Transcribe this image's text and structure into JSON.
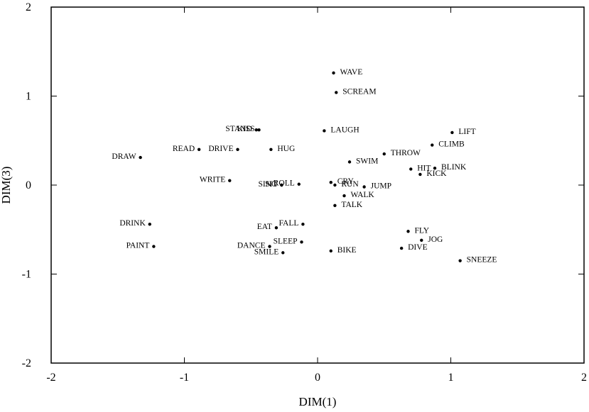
{
  "chart_data": {
    "type": "scatter",
    "title": "",
    "xlabel": "DIM(1)",
    "ylabel": "DIM(3)",
    "xlim": [
      -2,
      2
    ],
    "ylim": [
      -2,
      2
    ],
    "xticks": [
      "-2",
      "-1",
      "0",
      "1",
      "2"
    ],
    "yticks": [
      "-2",
      "-1",
      "0",
      "1",
      "2"
    ],
    "grid": false,
    "points": [
      {
        "label": "WAVE",
        "x": 0.12,
        "y": 1.26
      },
      {
        "label": "SCREAM",
        "x": 0.14,
        "y": 1.04
      },
      {
        "label": "STAND",
        "x": -0.46,
        "y": 0.62
      },
      {
        "label": "KISS",
        "x": -0.44,
        "y": 0.62
      },
      {
        "label": "LAUGH",
        "x": 0.05,
        "y": 0.61
      },
      {
        "label": "LIFT",
        "x": 1.01,
        "y": 0.59
      },
      {
        "label": "CLIMB",
        "x": 0.86,
        "y": 0.45
      },
      {
        "label": "THROW",
        "x": 0.5,
        "y": 0.35
      },
      {
        "label": "SWIM",
        "x": 0.24,
        "y": 0.26
      },
      {
        "label": "BLINK",
        "x": 0.88,
        "y": 0.19
      },
      {
        "label": "HIT",
        "x": 0.7,
        "y": 0.18
      },
      {
        "label": "KICK",
        "x": 0.77,
        "y": 0.12
      },
      {
        "label": "DRAW",
        "x": -1.33,
        "y": 0.31
      },
      {
        "label": "READ",
        "x": -0.89,
        "y": 0.4
      },
      {
        "label": "DRIVE",
        "x": -0.6,
        "y": 0.4
      },
      {
        "label": "HUG",
        "x": -0.35,
        "y": 0.4
      },
      {
        "label": "WRITE",
        "x": -0.66,
        "y": 0.05
      },
      {
        "label": "SING",
        "x": -0.27,
        "y": 0.0
      },
      {
        "label": "SIT",
        "x": -0.27,
        "y": 0.0
      },
      {
        "label": "ROLL",
        "x": -0.14,
        "y": 0.01
      },
      {
        "label": "CRY",
        "x": 0.1,
        "y": 0.03
      },
      {
        "label": "RUN",
        "x": 0.13,
        "y": 0.0
      },
      {
        "label": "JUMP",
        "x": 0.35,
        "y": -0.02
      },
      {
        "label": "WALK",
        "x": 0.2,
        "y": -0.12
      },
      {
        "label": "TALK",
        "x": 0.13,
        "y": -0.23
      },
      {
        "label": "DRINK",
        "x": -1.26,
        "y": -0.44
      },
      {
        "label": "PAINT",
        "x": -1.23,
        "y": -0.69
      },
      {
        "label": "EAT",
        "x": -0.31,
        "y": -0.48
      },
      {
        "label": "FALL",
        "x": -0.11,
        "y": -0.44
      },
      {
        "label": "SLEEP",
        "x": -0.12,
        "y": -0.64
      },
      {
        "label": "DANCE",
        "x": -0.36,
        "y": -0.69
      },
      {
        "label": "SMILE",
        "x": -0.26,
        "y": -0.76
      },
      {
        "label": "BIKE",
        "x": 0.1,
        "y": -0.74
      },
      {
        "label": "FLY",
        "x": 0.68,
        "y": -0.52
      },
      {
        "label": "JOG",
        "x": 0.78,
        "y": -0.62
      },
      {
        "label": "DIVE",
        "x": 0.63,
        "y": -0.71
      },
      {
        "label": "SNEEZE",
        "x": 1.07,
        "y": -0.85
      }
    ]
  }
}
